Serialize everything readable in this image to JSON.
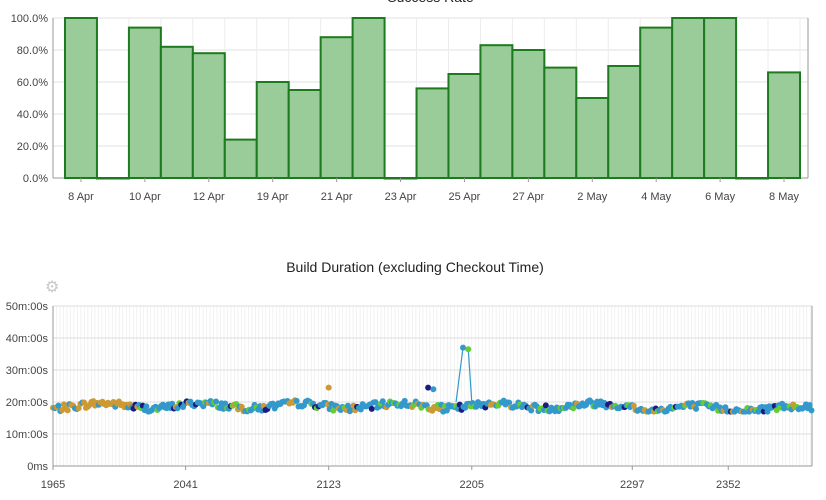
{
  "chart_data": [
    {
      "type": "bar",
      "title": "Success Rate",
      "ylim": [
        0,
        100
      ],
      "y_ticks": [
        "0.0%",
        "20.0%",
        "40.0%",
        "60.0%",
        "80.0%",
        "100.0%"
      ],
      "x_tick_labels": [
        "8 Apr",
        "10 Apr",
        "12 Apr",
        "19 Apr",
        "21 Apr",
        "23 Apr",
        "25 Apr",
        "27 Apr",
        "2 May",
        "4 May",
        "6 May",
        "8 May"
      ],
      "values": [
        100,
        0,
        94,
        82,
        78,
        24,
        60,
        55,
        88,
        100,
        0,
        56,
        65,
        83,
        80,
        69,
        50,
        70,
        94,
        100,
        100,
        0,
        66
      ],
      "grid": true,
      "colors": {
        "fill": "#99cc99",
        "stroke": "#1e7a1e"
      }
    },
    {
      "type": "scatter",
      "title": "Build Duration (excluding Checkout Time)",
      "y_ticks": [
        "0ms",
        "10m:00s",
        "20m:00s",
        "30m:00s",
        "40m:00s",
        "50m:00s"
      ],
      "ylim_minutes": [
        0,
        50
      ],
      "x_ticks": [
        "1965",
        "2041",
        "2123",
        "2205",
        "2297",
        "2352"
      ],
      "xlim": [
        1965,
        2400
      ],
      "grid": true,
      "series_colors": [
        "#3399cc",
        "#cc9933",
        "#66cc33",
        "#1a1a80"
      ],
      "spike": {
        "x": [
          2200,
          2203
        ],
        "y_minutes": [
          37,
          36.5
        ]
      },
      "notable_points": [
        {
          "x": 2123,
          "y_minutes": 24.5,
          "color_index": 1
        },
        {
          "x": 2180,
          "y_minutes": 24.5,
          "color_index": 3
        },
        {
          "x": 2183,
          "y_minutes": 24,
          "color_index": 0
        }
      ],
      "typical_range_minutes": [
        17,
        22
      ]
    }
  ],
  "settings_icon": "gear-icon"
}
